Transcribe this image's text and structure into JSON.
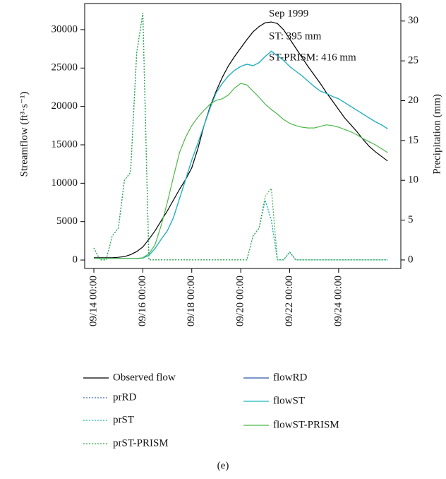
{
  "chart_data": {
    "type": "line",
    "annotations": [
      "Sep 1999",
      "ST: 395 mm",
      "ST-PRISM: 416 mm"
    ],
    "ylabel": "Streamflow (ft³·s⁻¹)",
    "y2label": "Precipitation (mm)",
    "caption": "(e)",
    "xlim": [
      "09/13 15:00",
      "09/26 13:00"
    ],
    "xticks": [
      "09/14 00:00",
      "09/16 00:00",
      "09/18 00:00",
      "09/20 00:00",
      "09/22 00:00",
      "09/24 00:00"
    ],
    "ylim": [
      -1100,
      33400
    ],
    "yticks": [
      0,
      5000,
      10000,
      15000,
      20000,
      25000,
      30000
    ],
    "y2lim": [
      -1.07,
      32.2
    ],
    "y2ticks": [
      0,
      5,
      10,
      15,
      20,
      25,
      30
    ],
    "x": [
      "09/14 00:00",
      "09/14 06:00",
      "09/14 12:00",
      "09/14 18:00",
      "09/15 00:00",
      "09/15 06:00",
      "09/15 12:00",
      "09/15 18:00",
      "09/16 00:00",
      "09/16 06:00",
      "09/16 12:00",
      "09/16 18:00",
      "09/17 00:00",
      "09/17 06:00",
      "09/17 12:00",
      "09/17 18:00",
      "09/18 00:00",
      "09/18 06:00",
      "09/18 12:00",
      "09/18 18:00",
      "09/19 00:00",
      "09/19 06:00",
      "09/19 12:00",
      "09/19 18:00",
      "09/20 00:00",
      "09/20 06:00",
      "09/20 12:00",
      "09/20 18:00",
      "09/21 00:00",
      "09/21 06:00",
      "09/21 12:00",
      "09/21 18:00",
      "09/22 00:00",
      "09/22 06:00",
      "09/22 12:00",
      "09/22 18:00",
      "09/23 00:00",
      "09/23 06:00",
      "09/23 12:00",
      "09/23 18:00",
      "09/24 00:00",
      "09/24 06:00",
      "09/24 12:00",
      "09/24 18:00",
      "09/25 00:00",
      "09/25 06:00",
      "09/25 12:00",
      "09/25 18:00",
      "09/26 00:00"
    ],
    "series": [
      {
        "name": "Observed flow",
        "color": "#000000",
        "style": "solid",
        "values": [
          300,
          300,
          300,
          300,
          350,
          450,
          700,
          1100,
          1700,
          2700,
          3800,
          5100,
          6400,
          7800,
          9200,
          10500,
          12000,
          14500,
          17500,
          20000,
          22000,
          23800,
          25300,
          26500,
          27600,
          28700,
          29700,
          30400,
          30900,
          31000,
          30800,
          30000,
          28800,
          27600,
          26400,
          25200,
          24100,
          23000,
          21800,
          20700,
          19600,
          18500,
          17600,
          16700,
          15700,
          14800,
          14100,
          13500,
          12900
        ]
      },
      {
        "name": "prRD",
        "color": "#3a6fb0",
        "style": "dotted",
        "axis": "y2",
        "values": [
          1.5,
          0,
          0,
          3,
          4,
          10,
          11,
          26,
          31,
          0,
          0,
          0,
          0,
          0,
          0,
          0,
          0,
          0,
          0,
          0,
          0,
          0,
          0,
          0,
          0,
          0,
          3,
          4,
          7.5,
          5,
          0,
          0,
          1,
          0,
          0,
          0,
          0,
          0,
          0,
          0,
          0,
          0,
          0,
          0,
          0,
          0,
          0,
          0,
          0
        ]
      },
      {
        "name": "prST",
        "color": "#1fb5b5",
        "style": "dotted",
        "axis": "y2",
        "values": [
          1.5,
          0,
          0,
          3,
          4,
          10,
          11,
          26,
          31,
          0,
          0,
          0,
          0,
          0,
          0,
          0,
          0,
          0,
          0,
          0,
          0,
          0,
          0,
          0,
          0,
          0,
          3,
          4,
          7.5,
          5,
          0,
          0,
          1,
          0,
          0,
          0,
          0,
          0,
          0,
          0,
          0,
          0,
          0,
          0,
          0,
          0,
          0,
          0,
          0
        ]
      },
      {
        "name": "prST-PRISM",
        "color": "#3aab4a",
        "style": "dotted",
        "axis": "y2",
        "values": [
          1.5,
          0,
          0,
          3,
          4,
          10,
          11,
          26,
          31,
          0,
          0,
          0,
          0,
          0,
          0,
          0,
          0,
          0,
          0,
          0,
          0,
          0,
          0,
          0,
          0,
          0,
          3,
          4,
          8,
          9,
          0,
          0,
          1,
          0,
          0,
          0,
          0,
          0,
          0,
          0,
          0,
          0,
          0,
          0,
          0,
          0,
          0,
          0,
          0
        ]
      },
      {
        "name": "flowRD",
        "color": "#2b58a6",
        "style": "solid",
        "values": [
          200,
          200,
          200,
          200,
          200,
          200,
          200,
          200,
          250,
          600,
          1500,
          2700,
          3800,
          5500,
          8000,
          10500,
          13000,
          15200,
          17500,
          19800,
          21800,
          23000,
          24000,
          24700,
          25200,
          25500,
          25300,
          25700,
          26500,
          27200,
          26600,
          26000,
          25200,
          24600,
          24000,
          23300,
          22600,
          22000,
          21700,
          21300,
          21000,
          20500,
          20000,
          19500,
          19000,
          18500,
          18000,
          17600,
          17100
        ]
      },
      {
        "name": "flowST",
        "color": "#1fb8c0",
        "style": "solid",
        "values": [
          200,
          200,
          200,
          200,
          200,
          200,
          200,
          200,
          250,
          600,
          1500,
          2700,
          3800,
          5500,
          8000,
          10500,
          13000,
          15200,
          17500,
          19800,
          21800,
          23000,
          24000,
          24700,
          25200,
          25500,
          25300,
          25700,
          26500,
          27200,
          26600,
          26000,
          25200,
          24600,
          24000,
          23300,
          22600,
          22000,
          21700,
          21300,
          21000,
          20500,
          20000,
          19500,
          19000,
          18500,
          18000,
          17600,
          17100
        ]
      },
      {
        "name": "flowST-PRISM",
        "color": "#4cb848",
        "style": "solid",
        "values": [
          200,
          200,
          200,
          200,
          200,
          200,
          200,
          200,
          300,
          800,
          2000,
          4500,
          7500,
          10800,
          14000,
          16000,
          17500,
          18600,
          19500,
          20300,
          20800,
          21000,
          21500,
          22400,
          23000,
          22800,
          22000,
          21200,
          20300,
          19600,
          19000,
          18300,
          17800,
          17500,
          17300,
          17200,
          17200,
          17400,
          17600,
          17500,
          17300,
          17000,
          16700,
          16300,
          15800,
          15400,
          15000,
          14500,
          14000
        ]
      }
    ]
  }
}
